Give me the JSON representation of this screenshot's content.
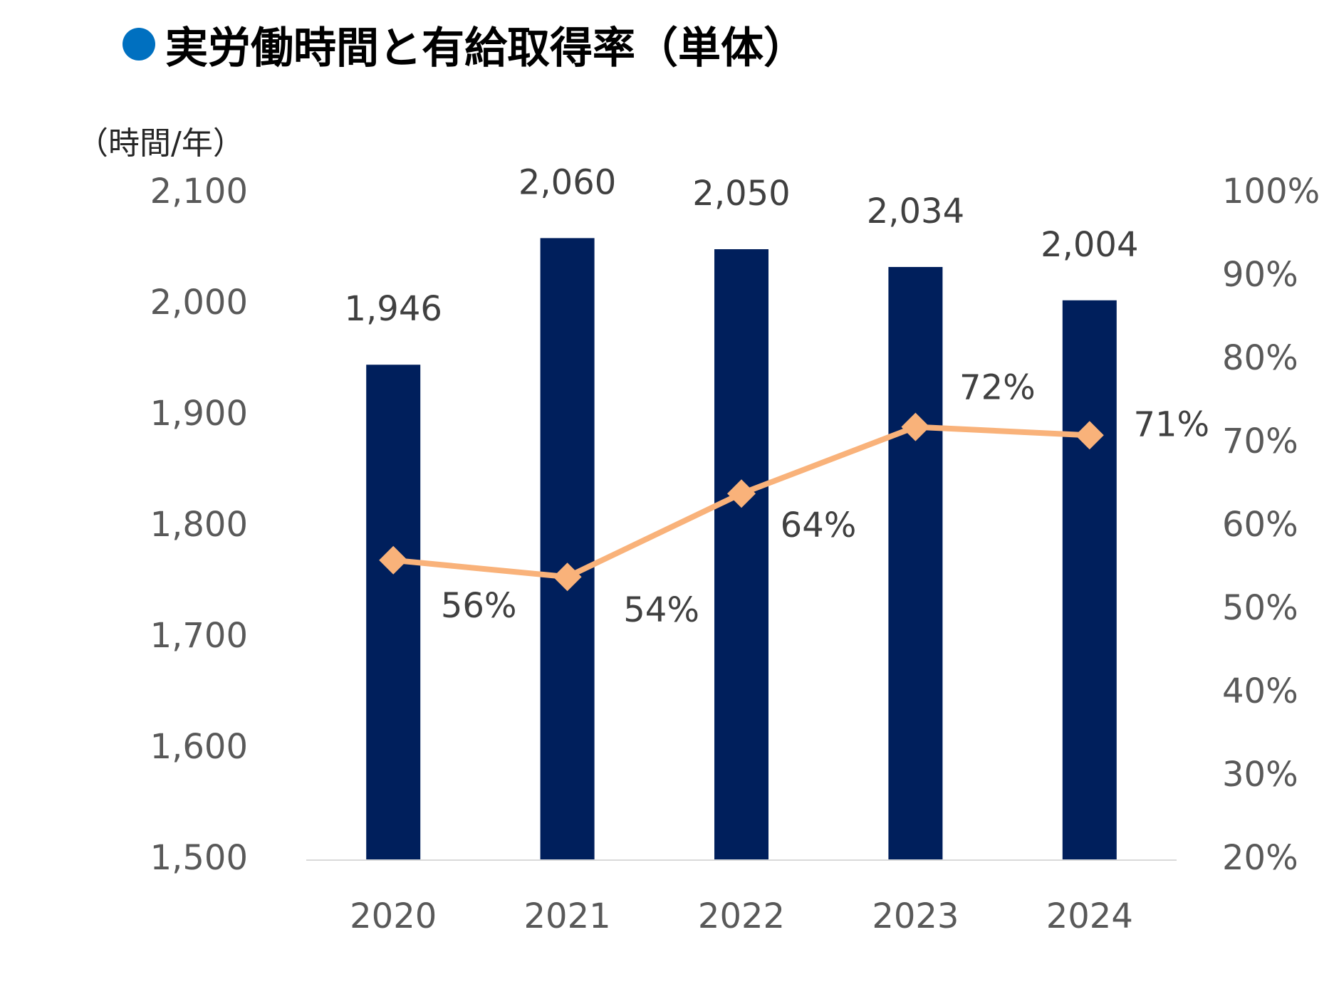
{
  "title": "実労働時間と有給取得率（単体）",
  "unit_label": "（時間/年）",
  "colors": {
    "title_bullet": "#0070c0",
    "bar": "#001f5c",
    "line": "#f9b27a",
    "axis": "#d9d9d9",
    "tick_text": "#595959",
    "data_label_text": "#404040"
  },
  "chart_data": {
    "type": "bar",
    "categories": [
      "2020",
      "2021",
      "2022",
      "2023",
      "2024"
    ],
    "series": [
      {
        "type": "bar",
        "axis": "left",
        "values": [
          1946,
          2060,
          2050,
          2034,
          2004
        ],
        "labels": [
          "1,946",
          "2,060",
          "2,050",
          "2,034",
          "2,004"
        ]
      },
      {
        "type": "line",
        "axis": "right",
        "marker": "diamond",
        "values": [
          56,
          54,
          64,
          72,
          71
        ],
        "labels": [
          "56%",
          "54%",
          "64%",
          "72%",
          "71%"
        ]
      }
    ],
    "y_left": {
      "ylim": [
        1500,
        2100
      ],
      "ticks": [
        1500,
        1600,
        1700,
        1800,
        1900,
        2000,
        2100
      ],
      "tick_labels": [
        "1,500",
        "1,600",
        "1,700",
        "1,800",
        "1,900",
        "2,000",
        "2,100"
      ]
    },
    "y_right": {
      "ylim": [
        20,
        100
      ],
      "ticks": [
        20,
        30,
        40,
        50,
        60,
        70,
        80,
        90,
        100
      ],
      "tick_labels": [
        "20%",
        "30%",
        "40%",
        "50%",
        "60%",
        "70%",
        "80%",
        "90%",
        "100%"
      ]
    },
    "grid": false,
    "legend": "none"
  }
}
